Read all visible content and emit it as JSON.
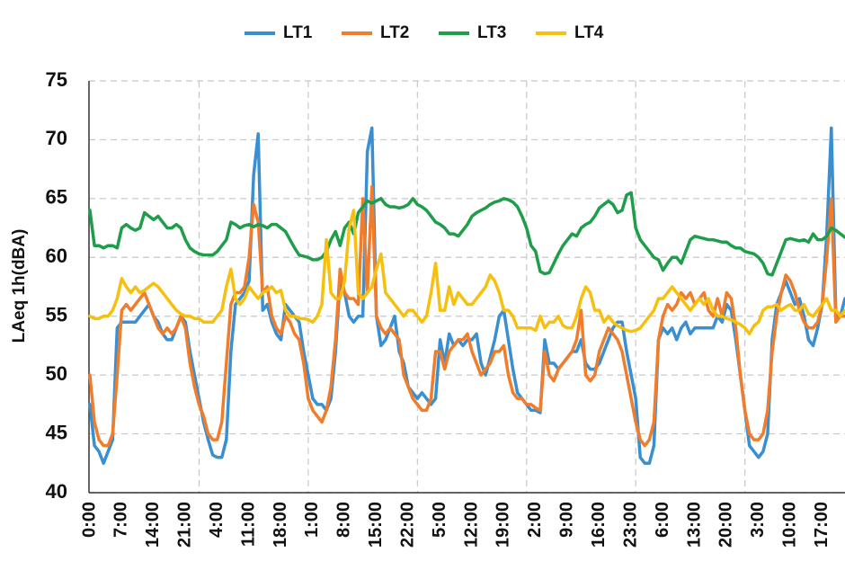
{
  "chart_data": {
    "type": "line",
    "y_label": "LAeq 1h(dBA)",
    "legend": "top",
    "grid": true,
    "ylim": [
      40,
      75
    ],
    "yticks": [
      40,
      45,
      50,
      55,
      60,
      65,
      70,
      75
    ],
    "categories": [
      "0:00",
      null,
      null,
      null,
      null,
      null,
      null,
      "7:00",
      null,
      null,
      null,
      null,
      null,
      null,
      "14:00",
      null,
      null,
      null,
      null,
      null,
      null,
      "21:00",
      null,
      null,
      null,
      null,
      null,
      null,
      "4:00",
      null,
      null,
      null,
      null,
      null,
      null,
      "11:00",
      null,
      null,
      null,
      null,
      null,
      null,
      "18:00",
      null,
      null,
      null,
      null,
      null,
      null,
      "1:00",
      null,
      null,
      null,
      null,
      null,
      null,
      "8:00",
      null,
      null,
      null,
      null,
      null,
      null,
      "15:00",
      null,
      null,
      null,
      null,
      null,
      null,
      "22:00",
      null,
      null,
      null,
      null,
      null,
      null,
      "5:00",
      null,
      null,
      null,
      null,
      null,
      null,
      "12:00",
      null,
      null,
      null,
      null,
      null,
      null,
      "19:00",
      null,
      null,
      null,
      null,
      null,
      null,
      "2:00",
      null,
      null,
      null,
      null,
      null,
      null,
      "9:00",
      null,
      null,
      null,
      null,
      null,
      null,
      "16:00",
      null,
      null,
      null,
      null,
      null,
      null,
      "23:00",
      null,
      null,
      null,
      null,
      null,
      null,
      "6:00",
      null,
      null,
      null,
      null,
      null,
      null,
      "13:00",
      null,
      null,
      null,
      null,
      null,
      null,
      "20:00",
      null,
      null,
      null,
      null,
      null,
      null,
      "3:00",
      null,
      null,
      null,
      null,
      null,
      null,
      "10:00",
      null,
      null,
      null,
      null,
      null,
      null,
      "17:00",
      null,
      null,
      null,
      null,
      null
    ],
    "series": [
      {
        "name": "LT1",
        "color": "#3a8fd0",
        "values": [
          47.5,
          44,
          43.5,
          42.5,
          43.5,
          44.5,
          54,
          54.5,
          54.5,
          54.5,
          54.5,
          55,
          55.5,
          56,
          55,
          54.5,
          53.5,
          53,
          53,
          54,
          55,
          54.5,
          52,
          50,
          48,
          46,
          44.5,
          43.2,
          43,
          43,
          44.5,
          52,
          56,
          56.5,
          57,
          58,
          67,
          70.5,
          55.5,
          56,
          54.5,
          53.5,
          53,
          56,
          55.5,
          55,
          54.5,
          52,
          50,
          48,
          47.5,
          47.5,
          47,
          48,
          52,
          58,
          57,
          55,
          54.5,
          55,
          55,
          69,
          71,
          55,
          52.5,
          53,
          54,
          55,
          52,
          51,
          49,
          48.5,
          48,
          48.5,
          48,
          47.5,
          48,
          53,
          51,
          53.5,
          52.5,
          53,
          52.5,
          53,
          53,
          53.5,
          51,
          50,
          51.5,
          53,
          55,
          55.5,
          53,
          50.5,
          48.5,
          48,
          47.5,
          47,
          47,
          46.8,
          53,
          51,
          51,
          50.5,
          51,
          51.5,
          52,
          52,
          53,
          51,
          50.5,
          50.5,
          51,
          52,
          53,
          54,
          54.5,
          54.5,
          52,
          50,
          48,
          43,
          42.5,
          42.5,
          44,
          53,
          54,
          53.5,
          54,
          53,
          54,
          54.5,
          53.5,
          54,
          54,
          54,
          54,
          54,
          55,
          54.5,
          56,
          55.5,
          53,
          50,
          47,
          44,
          43.5,
          43,
          43.5,
          45,
          53,
          56,
          57,
          58,
          57,
          56,
          56.5,
          55,
          53,
          52.5,
          54,
          56,
          62,
          71,
          55,
          55,
          56.5
        ]
      },
      {
        "name": "LT2",
        "color": "#f07d2c",
        "values": [
          50,
          46,
          44.5,
          44,
          44,
          45,
          50,
          55.5,
          56,
          55.5,
          56,
          56.5,
          57,
          56,
          55,
          54,
          53.5,
          54,
          53.5,
          54,
          55,
          54,
          51,
          49,
          47.5,
          46.5,
          45,
          44.5,
          44.5,
          46,
          51,
          56,
          57,
          57,
          57.5,
          60,
          64.5,
          63,
          57,
          57.5,
          55,
          54,
          53.5,
          55,
          54.5,
          53.5,
          53,
          51,
          48,
          47,
          46.5,
          46,
          47,
          49,
          53,
          59,
          57,
          56.5,
          56.5,
          56,
          65,
          57,
          66,
          55,
          54,
          53.5,
          54,
          53.5,
          53,
          50,
          49,
          48,
          47.5,
          47,
          47,
          48,
          52,
          52,
          50.5,
          52,
          52.5,
          53,
          53,
          53.5,
          52,
          51,
          50,
          50.5,
          51,
          52,
          52,
          52.5,
          50,
          48.5,
          48,
          48,
          47.5,
          47.5,
          47.2,
          47,
          52,
          50,
          49.5,
          50.5,
          51,
          51.5,
          52,
          53,
          55.5,
          50,
          49.5,
          50,
          52,
          53,
          54,
          53.5,
          53,
          52,
          50,
          48,
          46,
          44.5,
          44,
          44.5,
          46,
          53,
          55,
          56,
          55.5,
          56,
          57,
          56.5,
          57,
          56,
          56.5,
          57,
          55.5,
          55,
          56.5,
          55,
          57,
          56.5,
          54,
          50,
          47,
          45,
          44.5,
          44.5,
          45,
          47,
          52,
          55,
          57,
          58.5,
          58,
          57,
          55.5,
          54.5,
          54,
          54,
          54.5,
          56,
          60,
          65,
          54.5,
          55,
          55
        ]
      },
      {
        "name": "LT3",
        "color": "#1e9e4a",
        "values": [
          64,
          61,
          61,
          60.8,
          61,
          61,
          60.8,
          62.5,
          62.8,
          62.5,
          62.3,
          62.5,
          63.8,
          63.5,
          63.2,
          63.5,
          63,
          62.5,
          62.5,
          62.8,
          62.5,
          61.5,
          60.8,
          60.5,
          60.3,
          60.2,
          60.2,
          60.2,
          60.5,
          61,
          61.5,
          63,
          62.8,
          62.5,
          62.7,
          62.8,
          62.6,
          62.8,
          62.7,
          62.5,
          62.8,
          62.8,
          62.5,
          62.2,
          61.5,
          60.8,
          60.2,
          60.1,
          60,
          59.8,
          59.8,
          60,
          60.5,
          61.5,
          62.2,
          61,
          62.5,
          63,
          62,
          63.8,
          64.3,
          64.8,
          64.6,
          64.8,
          65,
          64.5,
          64.3,
          64.3,
          64.2,
          64.3,
          64.5,
          65,
          64.5,
          64.3,
          64,
          63.5,
          63,
          62.8,
          62.5,
          62,
          62,
          61.8,
          62.3,
          62.8,
          63.5,
          63.8,
          64,
          64.2,
          64.5,
          64.7,
          64.8,
          65,
          64.9,
          64.7,
          64.3,
          63.5,
          62.5,
          61,
          60.5,
          58.8,
          58.6,
          58.7,
          59.5,
          60.3,
          61,
          61.5,
          62,
          61.8,
          62.5,
          62.8,
          63,
          63.5,
          64.2,
          64.5,
          64.8,
          64.5,
          63.8,
          64,
          65.3,
          65.5,
          62.5,
          61.5,
          61,
          60.5,
          60,
          59.8,
          58.9,
          59.5,
          60,
          60,
          59.5,
          60.5,
          61.5,
          61.8,
          61.7,
          61.6,
          61.5,
          61.5,
          61.4,
          61.3,
          61.3,
          61,
          60.8,
          60.8,
          60.5,
          60.4,
          60.3,
          60,
          59.5,
          58.6,
          58.5,
          59.5,
          60.5,
          61.5,
          61.6,
          61.5,
          61.4,
          61.5,
          61.3,
          62,
          61.5,
          61.5,
          61.8,
          62.5,
          62.3,
          62,
          61.7
        ]
      },
      {
        "name": "LT4",
        "color": "#f5c00f",
        "values": [
          55,
          54.8,
          54.8,
          55,
          55,
          55.5,
          56.5,
          58.2,
          57.5,
          57,
          57.5,
          57,
          57.2,
          57.5,
          57.8,
          57.5,
          57,
          56.5,
          56,
          55.5,
          55.2,
          55,
          55,
          54.8,
          54.8,
          54.5,
          54.5,
          54.5,
          55,
          55.5,
          57.5,
          59,
          56.5,
          56,
          56.5,
          57.5,
          57,
          56.5,
          57,
          57.2,
          57.5,
          57,
          57.2,
          55.5,
          55,
          55,
          54.8,
          54.8,
          54.7,
          54.5,
          55,
          56,
          61.5,
          57,
          56.5,
          56.5,
          58,
          62.5,
          64,
          57,
          56.5,
          57,
          57.5,
          59,
          60.3,
          57,
          56.5,
          56,
          55.5,
          55,
          55.5,
          55.5,
          55,
          54.5,
          55,
          57,
          59.5,
          55.5,
          55.5,
          57.5,
          56,
          57,
          56.5,
          56,
          56,
          56.5,
          57,
          57.5,
          58.5,
          58,
          57,
          55.5,
          55.5,
          55,
          54,
          54,
          54,
          54,
          53.8,
          55,
          54,
          54.5,
          54.5,
          55,
          54.2,
          54,
          54,
          55,
          56.5,
          57.5,
          57,
          55.5,
          55.5,
          54.5,
          55,
          54.5,
          54.2,
          54,
          53.8,
          53.7,
          53.8,
          54,
          54.5,
          55,
          55.5,
          56.5,
          56.5,
          57,
          57.5,
          57,
          56.5,
          56,
          55.5,
          56,
          56.5,
          56,
          56.5,
          55.5,
          55,
          55,
          54.8,
          54.7,
          54.5,
          54.3,
          54,
          53.5,
          54.2,
          54.5,
          55.5,
          55.8,
          55.8,
          56,
          55.5,
          55.8,
          56,
          55.5,
          55.5,
          56,
          55.2,
          55,
          55.5,
          56,
          56.5,
          55.5,
          55.5,
          55,
          55.5
        ]
      }
    ]
  }
}
